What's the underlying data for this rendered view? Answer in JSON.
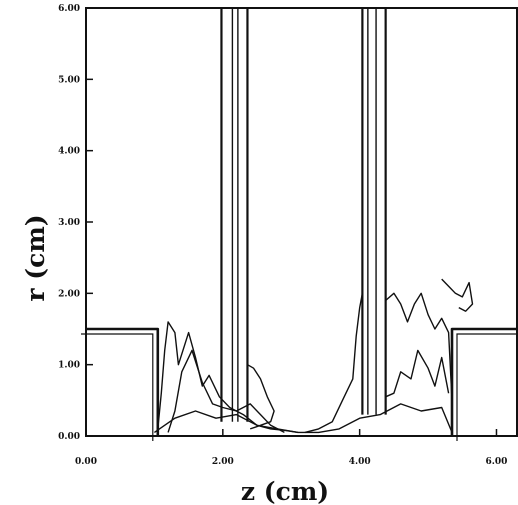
{
  "chart_data": {
    "type": "line",
    "title": "",
    "xlabel": "z (cm)",
    "ylabel": "r (cm)",
    "xlim": [
      0,
      6.3
    ],
    "ylim": [
      0,
      6.0
    ],
    "x_ticks": [
      "0.00",
      "2.00",
      "4.00",
      "6.00"
    ],
    "y_ticks": [
      "0.00",
      "1.00",
      "2.00",
      "3.00",
      "4.00",
      "5.00",
      "6.00"
    ],
    "x_tick_values": [
      0,
      2,
      4,
      6
    ],
    "y_tick_values": [
      0,
      1,
      2,
      3,
      4,
      5,
      6
    ],
    "grid": false,
    "series": [
      {
        "role": "wall-left",
        "x": [
          0,
          1.05,
          1.05
        ],
        "y": [
          1.5,
          1.5,
          0
        ]
      },
      {
        "role": "wall-right",
        "x": [
          6.3,
          5.35,
          5.35
        ],
        "y": [
          1.5,
          1.5,
          0
        ]
      },
      {
        "role": "divider-left",
        "x_edges": [
          1.98,
          2.14,
          2.22,
          2.36
        ],
        "y_range": [
          0.2,
          6.0
        ]
      },
      {
        "role": "divider-right",
        "x_edges": [
          4.04,
          4.12,
          4.24,
          4.38
        ],
        "y_range": [
          0.3,
          6.0
        ]
      },
      {
        "role": "flow-contour-left",
        "x": [
          1.05,
          1.1,
          1.15,
          1.2,
          1.3,
          1.35,
          1.45,
          1.5,
          1.6,
          1.7,
          1.8,
          1.95,
          2.1,
          2.3,
          2.5,
          2.7,
          2.9,
          3.1
        ],
        "y": [
          0.1,
          0.6,
          1.2,
          1.6,
          1.45,
          1.0,
          1.3,
          1.45,
          1.1,
          0.7,
          0.85,
          0.55,
          0.4,
          0.3,
          0.15,
          0.1,
          0.08,
          0.05
        ]
      },
      {
        "role": "flow-contour-left-inner",
        "x": [
          1.2,
          1.3,
          1.4,
          1.55,
          1.7,
          1.85,
          2.0,
          2.2,
          2.4,
          2.55,
          2.7,
          2.9
        ],
        "y": [
          0.05,
          0.35,
          0.9,
          1.2,
          0.75,
          0.45,
          0.4,
          0.35,
          0.45,
          0.3,
          0.15,
          0.05
        ]
      },
      {
        "role": "flow-contour-near-divider-left",
        "x": [
          2.36,
          2.45,
          2.55,
          2.65,
          2.75,
          2.7,
          2.55,
          2.4
        ],
        "y": [
          1.0,
          0.95,
          0.8,
          0.55,
          0.35,
          0.2,
          0.15,
          0.1
        ]
      },
      {
        "role": "flow-contour-right",
        "x": [
          3.2,
          3.4,
          3.6,
          3.75,
          3.9,
          3.95,
          4.0,
          4.04
        ],
        "y": [
          0.05,
          0.1,
          0.2,
          0.5,
          0.8,
          1.4,
          1.8,
          2.0
        ]
      },
      {
        "role": "flow-contour-right-outer",
        "x": [
          4.38,
          4.5,
          4.6,
          4.7,
          4.8,
          4.9,
          5.0,
          5.1,
          5.2,
          5.3,
          5.35
        ],
        "y": [
          1.9,
          2.0,
          1.85,
          1.6,
          1.85,
          2.0,
          1.7,
          1.5,
          1.65,
          1.45,
          0.5
        ]
      },
      {
        "role": "flow-contour-right-inner",
        "x": [
          4.38,
          4.5,
          4.6,
          4.75,
          4.85,
          5.0,
          5.1,
          5.2,
          5.3
        ],
        "y": [
          0.55,
          0.6,
          0.9,
          0.8,
          1.2,
          0.95,
          0.7,
          1.1,
          0.6
        ]
      },
      {
        "role": "flow-contour-right-far",
        "x": [
          5.2,
          5.3,
          5.4,
          5.5,
          5.6,
          5.65,
          5.55,
          5.45
        ],
        "y": [
          2.2,
          2.1,
          2.0,
          1.95,
          2.15,
          1.85,
          1.75,
          1.8
        ]
      },
      {
        "role": "bottom-turbulence",
        "x": [
          1.0,
          1.3,
          1.6,
          1.9,
          2.2,
          2.5,
          2.8,
          3.1,
          3.4,
          3.7,
          4.0,
          4.3,
          4.6,
          4.9,
          5.2,
          5.35
        ],
        "y": [
          0.05,
          0.25,
          0.35,
          0.25,
          0.3,
          0.15,
          0.1,
          0.05,
          0.05,
          0.1,
          0.25,
          0.3,
          0.45,
          0.35,
          0.4,
          0.05
        ]
      }
    ]
  }
}
